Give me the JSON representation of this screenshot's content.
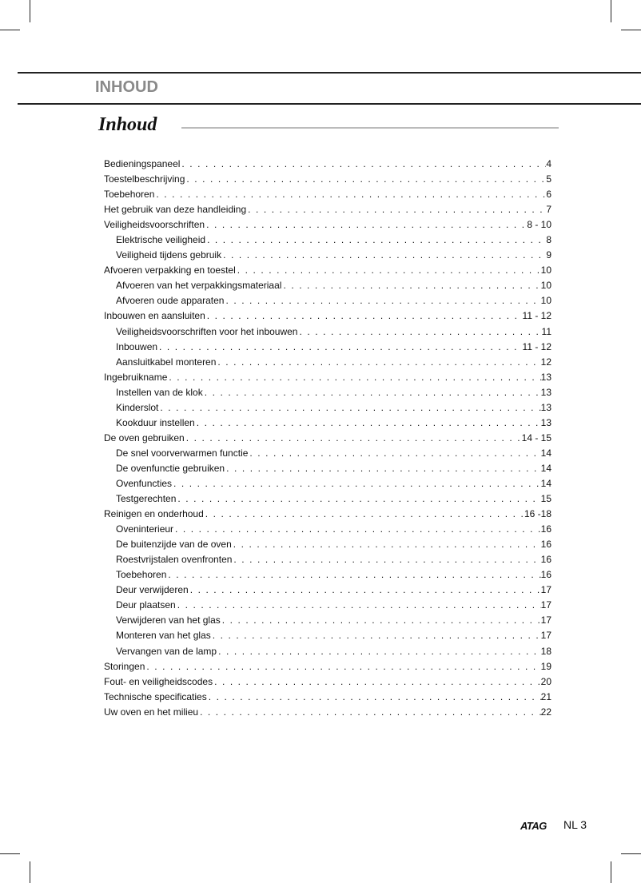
{
  "header": {
    "section": "INHOUD",
    "title": "Inhoud"
  },
  "toc": [
    {
      "t": "Bedieningspaneel",
      "p": "4",
      "l": 1
    },
    {
      "t": "Toestelbeschrijving",
      "p": "5",
      "l": 1
    },
    {
      "t": "Toebehoren",
      "p": "6",
      "l": 1
    },
    {
      "t": "Het gebruik van deze handleiding",
      "p": "7",
      "l": 1
    },
    {
      "t": "Veiligheidsvoorschriften",
      "p": "8 - 10",
      "l": 1
    },
    {
      "t": "Elektrische veiligheid",
      "p": "8",
      "l": 2
    },
    {
      "t": "Veiligheid tijdens gebruik",
      "p": "9",
      "l": 2
    },
    {
      "t": "Afvoeren verpakking en toestel",
      "p": "10",
      "l": 1
    },
    {
      "t": "Afvoeren van het verpakkingsmateriaal",
      "p": "10",
      "l": 2
    },
    {
      "t": "Afvoeren oude apparaten",
      "p": "10",
      "l": 2
    },
    {
      "t": "Inbouwen en aansluiten",
      "p": "11 - 12",
      "l": 1
    },
    {
      "t": "Veiligheidsvoorschriften voor het inbouwen",
      "p": "11",
      "l": 2
    },
    {
      "t": "Inbouwen",
      "p": "11 - 12",
      "l": 2
    },
    {
      "t": "Aansluitkabel monteren",
      "p": "12",
      "l": 2
    },
    {
      "t": "Ingebruikname",
      "p": "13",
      "l": 1
    },
    {
      "t": "Instellen van de klok",
      "p": "13",
      "l": 2
    },
    {
      "t": "Kinderslot",
      "p": "13",
      "l": 2
    },
    {
      "t": "Kookduur instellen",
      "p": "13",
      "l": 2
    },
    {
      "t": "De oven gebruiken",
      "p": "14 - 15",
      "l": 1
    },
    {
      "t": "De snel voorverwarmen functie",
      "p": "14",
      "l": 2
    },
    {
      "t": "De ovenfunctie gebruiken",
      "p": "14",
      "l": 2
    },
    {
      "t": "Ovenfuncties",
      "p": "14",
      "l": 2
    },
    {
      "t": "Testgerechten",
      "p": "15",
      "l": 2
    },
    {
      "t": "Reinigen en onderhoud",
      "p": "16 -18",
      "l": 1
    },
    {
      "t": "Oveninterieur",
      "p": "16",
      "l": 2
    },
    {
      "t": "De buitenzijde van de oven",
      "p": "16",
      "l": 2
    },
    {
      "t": "Roestvrijstalen ovenfronten",
      "p": "16",
      "l": 2
    },
    {
      "t": "Toebehoren",
      "p": "16",
      "l": 2
    },
    {
      "t": "Deur verwijderen",
      "p": "17",
      "l": 2
    },
    {
      "t": "Deur plaatsen",
      "p": "17",
      "l": 2
    },
    {
      "t": "Verwijderen van het glas",
      "p": "17",
      "l": 2
    },
    {
      "t": "Monteren van het glas",
      "p": "17",
      "l": 2
    },
    {
      "t": "Vervangen van de lamp",
      "p": "18",
      "l": 2
    },
    {
      "t": "Storingen",
      "p": "19",
      "l": 1
    },
    {
      "t": "Fout- en veiligheidscodes",
      "p": "20",
      "l": 1
    },
    {
      "t": "Technische specificaties",
      "p": "21",
      "l": 1
    },
    {
      "t": "Uw oven en het milieu",
      "p": "22",
      "l": 1
    }
  ],
  "footer": {
    "brand": "ATAG",
    "page": "NL 3"
  }
}
